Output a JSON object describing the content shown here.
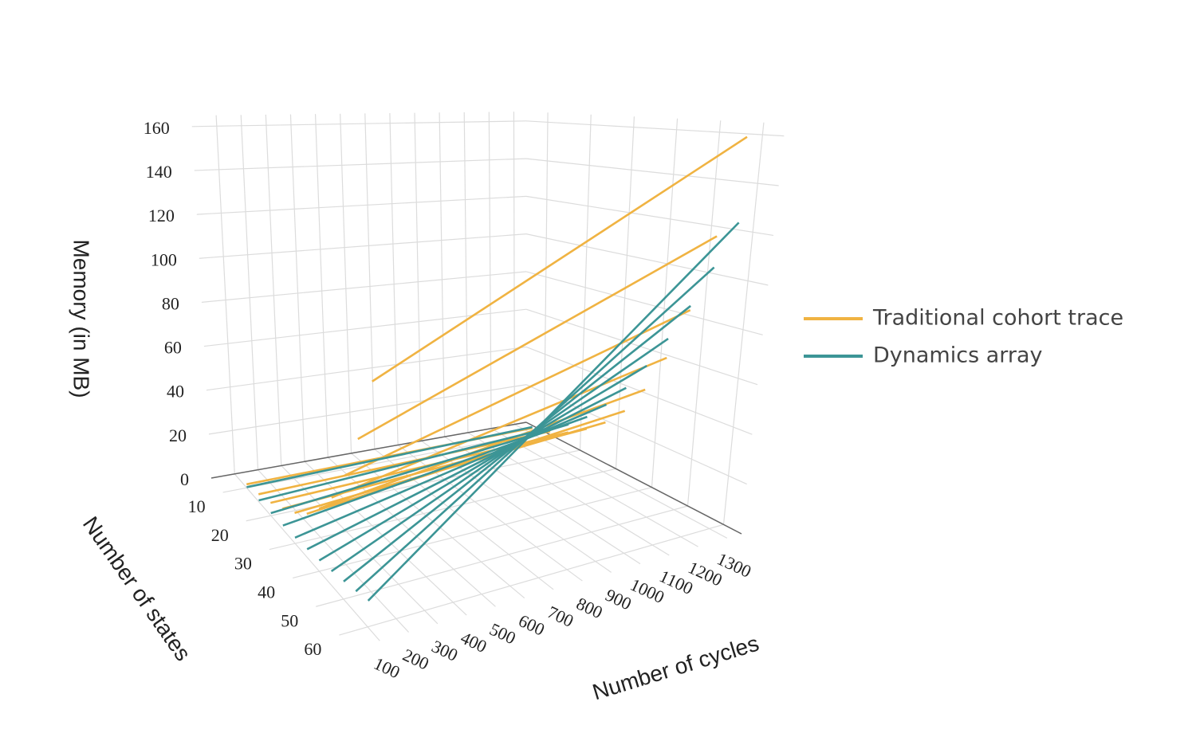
{
  "chart_data": {
    "type": "line3d",
    "xlabel": "Number of cycles",
    "ylabel": "Number of states",
    "zlabel": "Memory (in MB)",
    "x": [
      100,
      1300
    ],
    "xlim": [
      0,
      1350
    ],
    "xticks": [
      100,
      200,
      300,
      400,
      500,
      600,
      700,
      800,
      900,
      1000,
      1100,
      1200,
      1300
    ],
    "ylim": [
      5,
      65
    ],
    "yticks": [
      10,
      20,
      30,
      40,
      50,
      60
    ],
    "zlim": [
      0,
      165
    ],
    "zticks": [
      0,
      20,
      40,
      60,
      80,
      100,
      120,
      140,
      160
    ],
    "grid": true,
    "series": [
      {
        "name": "Traditional cohort trace",
        "color": "#f0b342",
        "lines": [
          {
            "states": 10,
            "values": [
              1.6,
              3
            ]
          },
          {
            "states": 15,
            "values": [
              3.3,
              6
            ]
          },
          {
            "states": 20,
            "values": [
              5.5,
              10
            ]
          },
          {
            "states": 25,
            "values": [
              8.8,
              16
            ]
          },
          {
            "states": 30,
            "values": [
              12.6,
              23
            ]
          },
          {
            "states": 35,
            "values": [
              17.6,
              32
            ]
          },
          {
            "states": 40,
            "values": [
              24.8,
              45
            ]
          },
          {
            "states": 45,
            "values": [
              34,
              62
            ]
          },
          {
            "states": 50,
            "values": [
              47,
              85
            ]
          },
          {
            "states": 55,
            "values": [
              65,
              118
            ]
          },
          {
            "states": 60,
            "values": [
              90,
              160
            ]
          }
        ]
      },
      {
        "name": "Dynamics array",
        "color": "#3c9596",
        "lines": [
          {
            "states": 10,
            "values": [
              0.3,
              3.5
            ]
          },
          {
            "states": 15,
            "values": [
              0.6,
              7.8
            ]
          },
          {
            "states": 20,
            "values": [
              1.1,
              13.9
            ]
          },
          {
            "states": 25,
            "values": [
              1.7,
              21.7
            ]
          },
          {
            "states": 30,
            "values": [
              2.4,
              31.3
            ]
          },
          {
            "states": 35,
            "values": [
              3.3,
              42.5
            ]
          },
          {
            "states": 40,
            "values": [
              4.3,
              55.6
            ]
          },
          {
            "states": 45,
            "values": [
              5.4,
              70.3
            ]
          },
          {
            "states": 50,
            "values": [
              6.7,
              86.8
            ]
          },
          {
            "states": 55,
            "values": [
              8.1,
              105
            ]
          },
          {
            "states": 60,
            "values": [
              9.6,
              125
            ]
          }
        ]
      }
    ]
  }
}
